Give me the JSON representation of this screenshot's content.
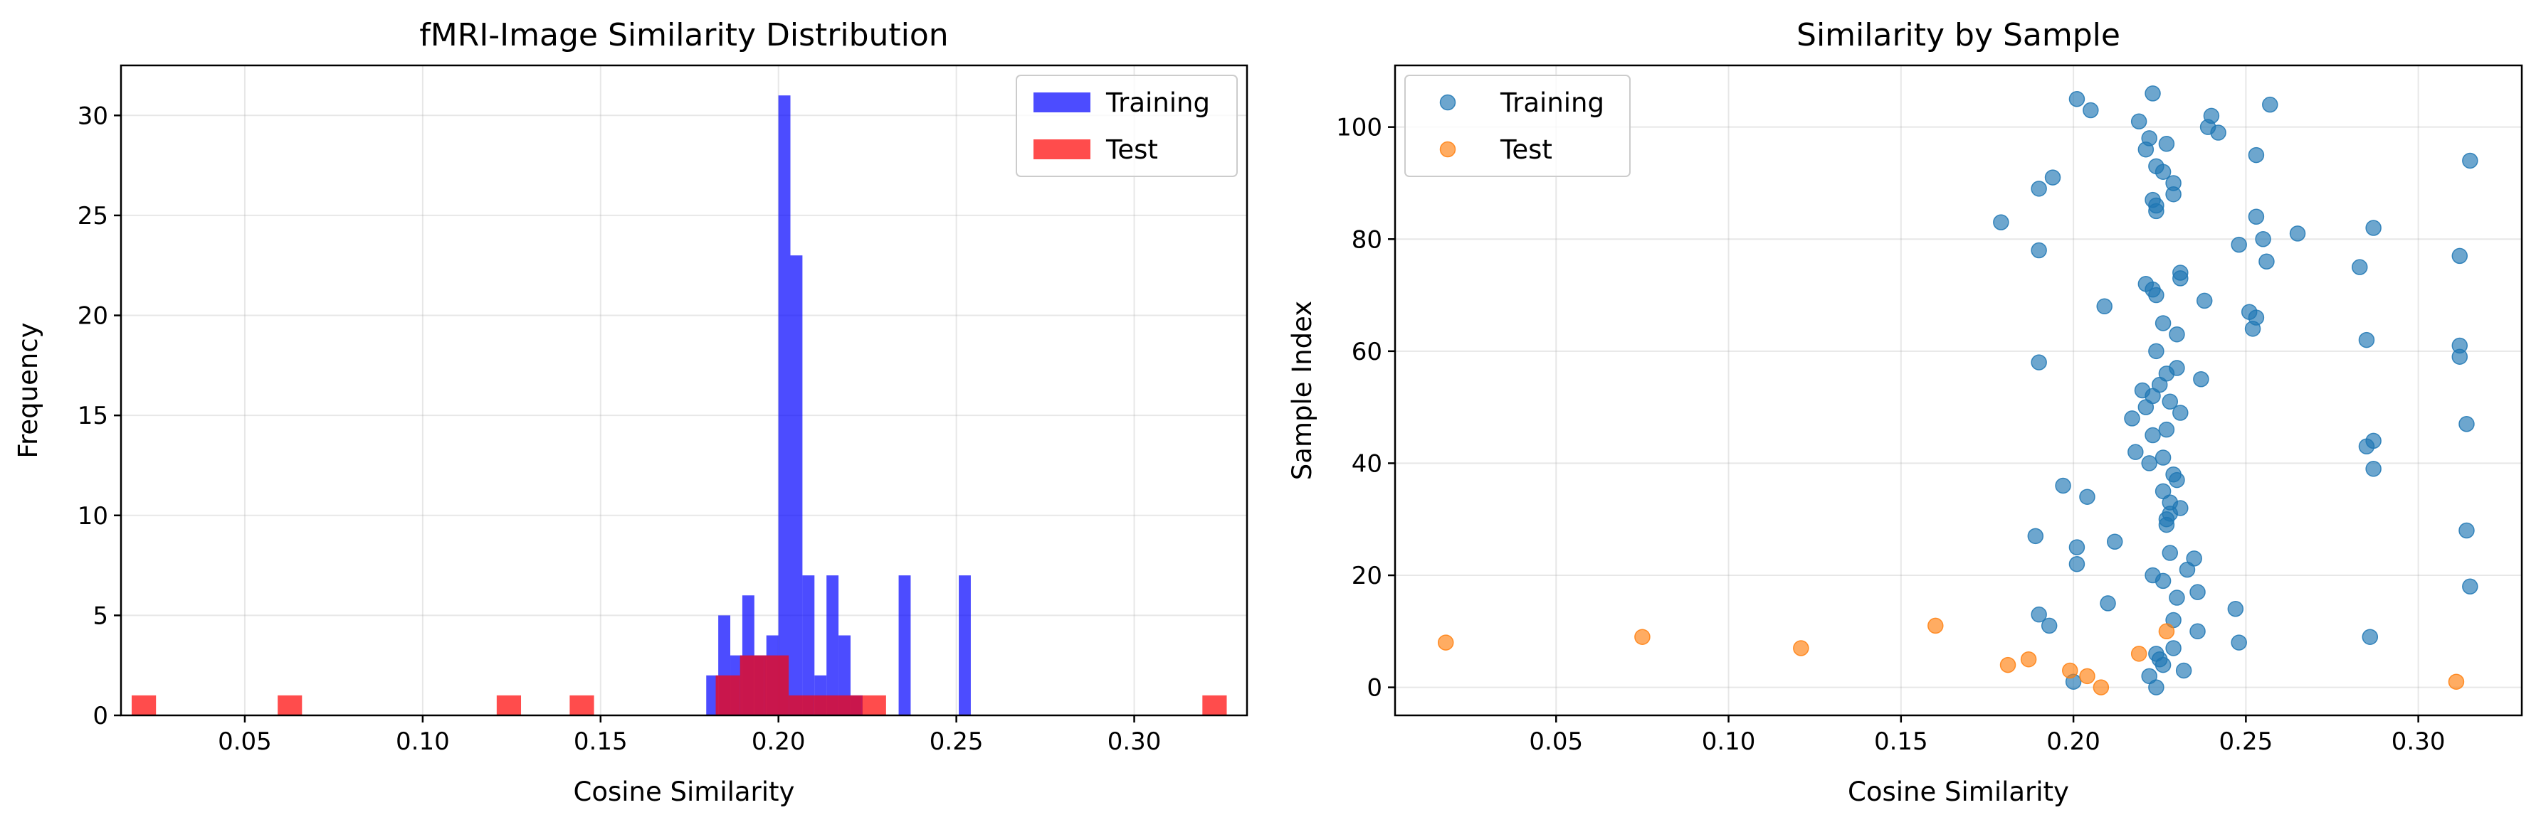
{
  "colors": {
    "training_hist": "#0000ff",
    "test_hist": "#ff0000",
    "training_scatter": "#1f77b4",
    "test_scatter": "#ff7f0e",
    "grid": "#b0b0b0"
  },
  "chart_data": [
    {
      "type": "bar",
      "title": "fMRI-Image Similarity Distribution",
      "xlabel": "Cosine Similarity",
      "ylabel": "Frequency",
      "xlim": [
        0.0152,
        0.3317
      ],
      "ylim": [
        0,
        32.5
      ],
      "xticks": [
        0.05,
        0.1,
        0.15,
        0.2,
        0.25,
        0.3
      ],
      "xtick_labels": [
        "0.05",
        "0.10",
        "0.15",
        "0.20",
        "0.25",
        "0.30"
      ],
      "yticks": [
        0,
        5,
        10,
        15,
        20,
        25,
        30
      ],
      "ytick_labels": [
        "0",
        "5",
        "10",
        "15",
        "20",
        "25",
        "30"
      ],
      "grid": true,
      "legend_position": "top-right",
      "series": [
        {
          "name": "Training",
          "color": "#0000ff",
          "alpha": 0.7,
          "bin_start": 0.1797,
          "bin_width": 0.00338,
          "counts": [
            2,
            5,
            3,
            6,
            3,
            4,
            31,
            23,
            7,
            2,
            7,
            4,
            1,
            0,
            0,
            0,
            7,
            0,
            0,
            0,
            0,
            7
          ]
        },
        {
          "name": "Test",
          "color": "#ff0000",
          "alpha": 0.7,
          "bin_start": 0.0182,
          "bin_width": 0.00684,
          "counts": [
            1,
            0,
            0,
            0,
            0,
            0,
            1,
            0,
            0,
            0,
            0,
            0,
            0,
            0,
            0,
            1,
            0,
            0,
            1,
            0,
            0,
            0,
            0,
            0,
            2,
            3,
            3,
            1,
            1,
            1,
            1,
            0,
            0,
            0,
            0,
            0,
            0,
            0,
            0,
            0,
            0,
            0,
            0,
            0,
            1
          ]
        }
      ]
    },
    {
      "type": "scatter",
      "title": "Similarity by Sample",
      "xlabel": "Cosine Similarity",
      "ylabel": "Sample Index",
      "xlim": [
        0.0033,
        0.33
      ],
      "ylim": [
        -5,
        111
      ],
      "xticks": [
        0.05,
        0.1,
        0.15,
        0.2,
        0.25,
        0.3
      ],
      "xtick_labels": [
        "0.05",
        "0.10",
        "0.15",
        "0.20",
        "0.25",
        "0.30"
      ],
      "yticks": [
        0,
        20,
        40,
        60,
        80,
        100
      ],
      "ytick_labels": [
        "0",
        "20",
        "40",
        "60",
        "80",
        "100"
      ],
      "grid": true,
      "legend_position": "top-left",
      "series": [
        {
          "name": "Training",
          "color": "#1f77b4",
          "alpha": 0.65,
          "points": [
            [
              0.224,
              0
            ],
            [
              0.2,
              1
            ],
            [
              0.222,
              2
            ],
            [
              0.232,
              3
            ],
            [
              0.226,
              4
            ],
            [
              0.225,
              5
            ],
            [
              0.224,
              6
            ],
            [
              0.229,
              7
            ],
            [
              0.248,
              8
            ],
            [
              0.286,
              9
            ],
            [
              0.236,
              10
            ],
            [
              0.193,
              11
            ],
            [
              0.229,
              12
            ],
            [
              0.19,
              13
            ],
            [
              0.247,
              14
            ],
            [
              0.21,
              15
            ],
            [
              0.23,
              16
            ],
            [
              0.236,
              17
            ],
            [
              0.315,
              18
            ],
            [
              0.226,
              19
            ],
            [
              0.223,
              20
            ],
            [
              0.233,
              21
            ],
            [
              0.201,
              22
            ],
            [
              0.235,
              23
            ],
            [
              0.228,
              24
            ],
            [
              0.201,
              25
            ],
            [
              0.212,
              26
            ],
            [
              0.189,
              27
            ],
            [
              0.314,
              28
            ],
            [
              0.227,
              29
            ],
            [
              0.227,
              30
            ],
            [
              0.228,
              31
            ],
            [
              0.231,
              32
            ],
            [
              0.228,
              33
            ],
            [
              0.204,
              34
            ],
            [
              0.226,
              35
            ],
            [
              0.197,
              36
            ],
            [
              0.23,
              37
            ],
            [
              0.229,
              38
            ],
            [
              0.287,
              39
            ],
            [
              0.222,
              40
            ],
            [
              0.226,
              41
            ],
            [
              0.218,
              42
            ],
            [
              0.285,
              43
            ],
            [
              0.287,
              44
            ],
            [
              0.223,
              45
            ],
            [
              0.227,
              46
            ],
            [
              0.314,
              47
            ],
            [
              0.217,
              48
            ],
            [
              0.231,
              49
            ],
            [
              0.221,
              50
            ],
            [
              0.228,
              51
            ],
            [
              0.223,
              52
            ],
            [
              0.22,
              53
            ],
            [
              0.225,
              54
            ],
            [
              0.237,
              55
            ],
            [
              0.227,
              56
            ],
            [
              0.23,
              57
            ],
            [
              0.19,
              58
            ],
            [
              0.312,
              59
            ],
            [
              0.224,
              60
            ],
            [
              0.312,
              61
            ],
            [
              0.285,
              62
            ],
            [
              0.23,
              63
            ],
            [
              0.252,
              64
            ],
            [
              0.226,
              65
            ],
            [
              0.253,
              66
            ],
            [
              0.251,
              67
            ],
            [
              0.209,
              68
            ],
            [
              0.238,
              69
            ],
            [
              0.224,
              70
            ],
            [
              0.223,
              71
            ],
            [
              0.221,
              72
            ],
            [
              0.231,
              73
            ],
            [
              0.231,
              74
            ],
            [
              0.283,
              75
            ],
            [
              0.256,
              76
            ],
            [
              0.312,
              77
            ],
            [
              0.19,
              78
            ],
            [
              0.248,
              79
            ],
            [
              0.255,
              80
            ],
            [
              0.265,
              81
            ],
            [
              0.287,
              82
            ],
            [
              0.179,
              83
            ],
            [
              0.253,
              84
            ],
            [
              0.224,
              85
            ],
            [
              0.224,
              86
            ],
            [
              0.223,
              87
            ],
            [
              0.229,
              88
            ],
            [
              0.19,
              89
            ],
            [
              0.229,
              90
            ],
            [
              0.194,
              91
            ],
            [
              0.226,
              92
            ],
            [
              0.224,
              93
            ],
            [
              0.315,
              94
            ],
            [
              0.253,
              95
            ],
            [
              0.221,
              96
            ],
            [
              0.227,
              97
            ],
            [
              0.222,
              98
            ],
            [
              0.242,
              99
            ],
            [
              0.239,
              100
            ],
            [
              0.219,
              101
            ],
            [
              0.24,
              102
            ],
            [
              0.205,
              103
            ],
            [
              0.257,
              104
            ],
            [
              0.201,
              105
            ],
            [
              0.223,
              106
            ]
          ]
        },
        {
          "name": "Test",
          "color": "#ff7f0e",
          "alpha": 0.65,
          "points": [
            [
              0.208,
              0
            ],
            [
              0.311,
              1
            ],
            [
              0.204,
              2
            ],
            [
              0.199,
              3
            ],
            [
              0.181,
              4
            ],
            [
              0.187,
              5
            ],
            [
              0.219,
              6
            ],
            [
              0.121,
              7
            ],
            [
              0.018,
              8
            ],
            [
              0.075,
              9
            ],
            [
              0.227,
              10
            ],
            [
              0.16,
              11
            ]
          ]
        }
      ]
    }
  ]
}
